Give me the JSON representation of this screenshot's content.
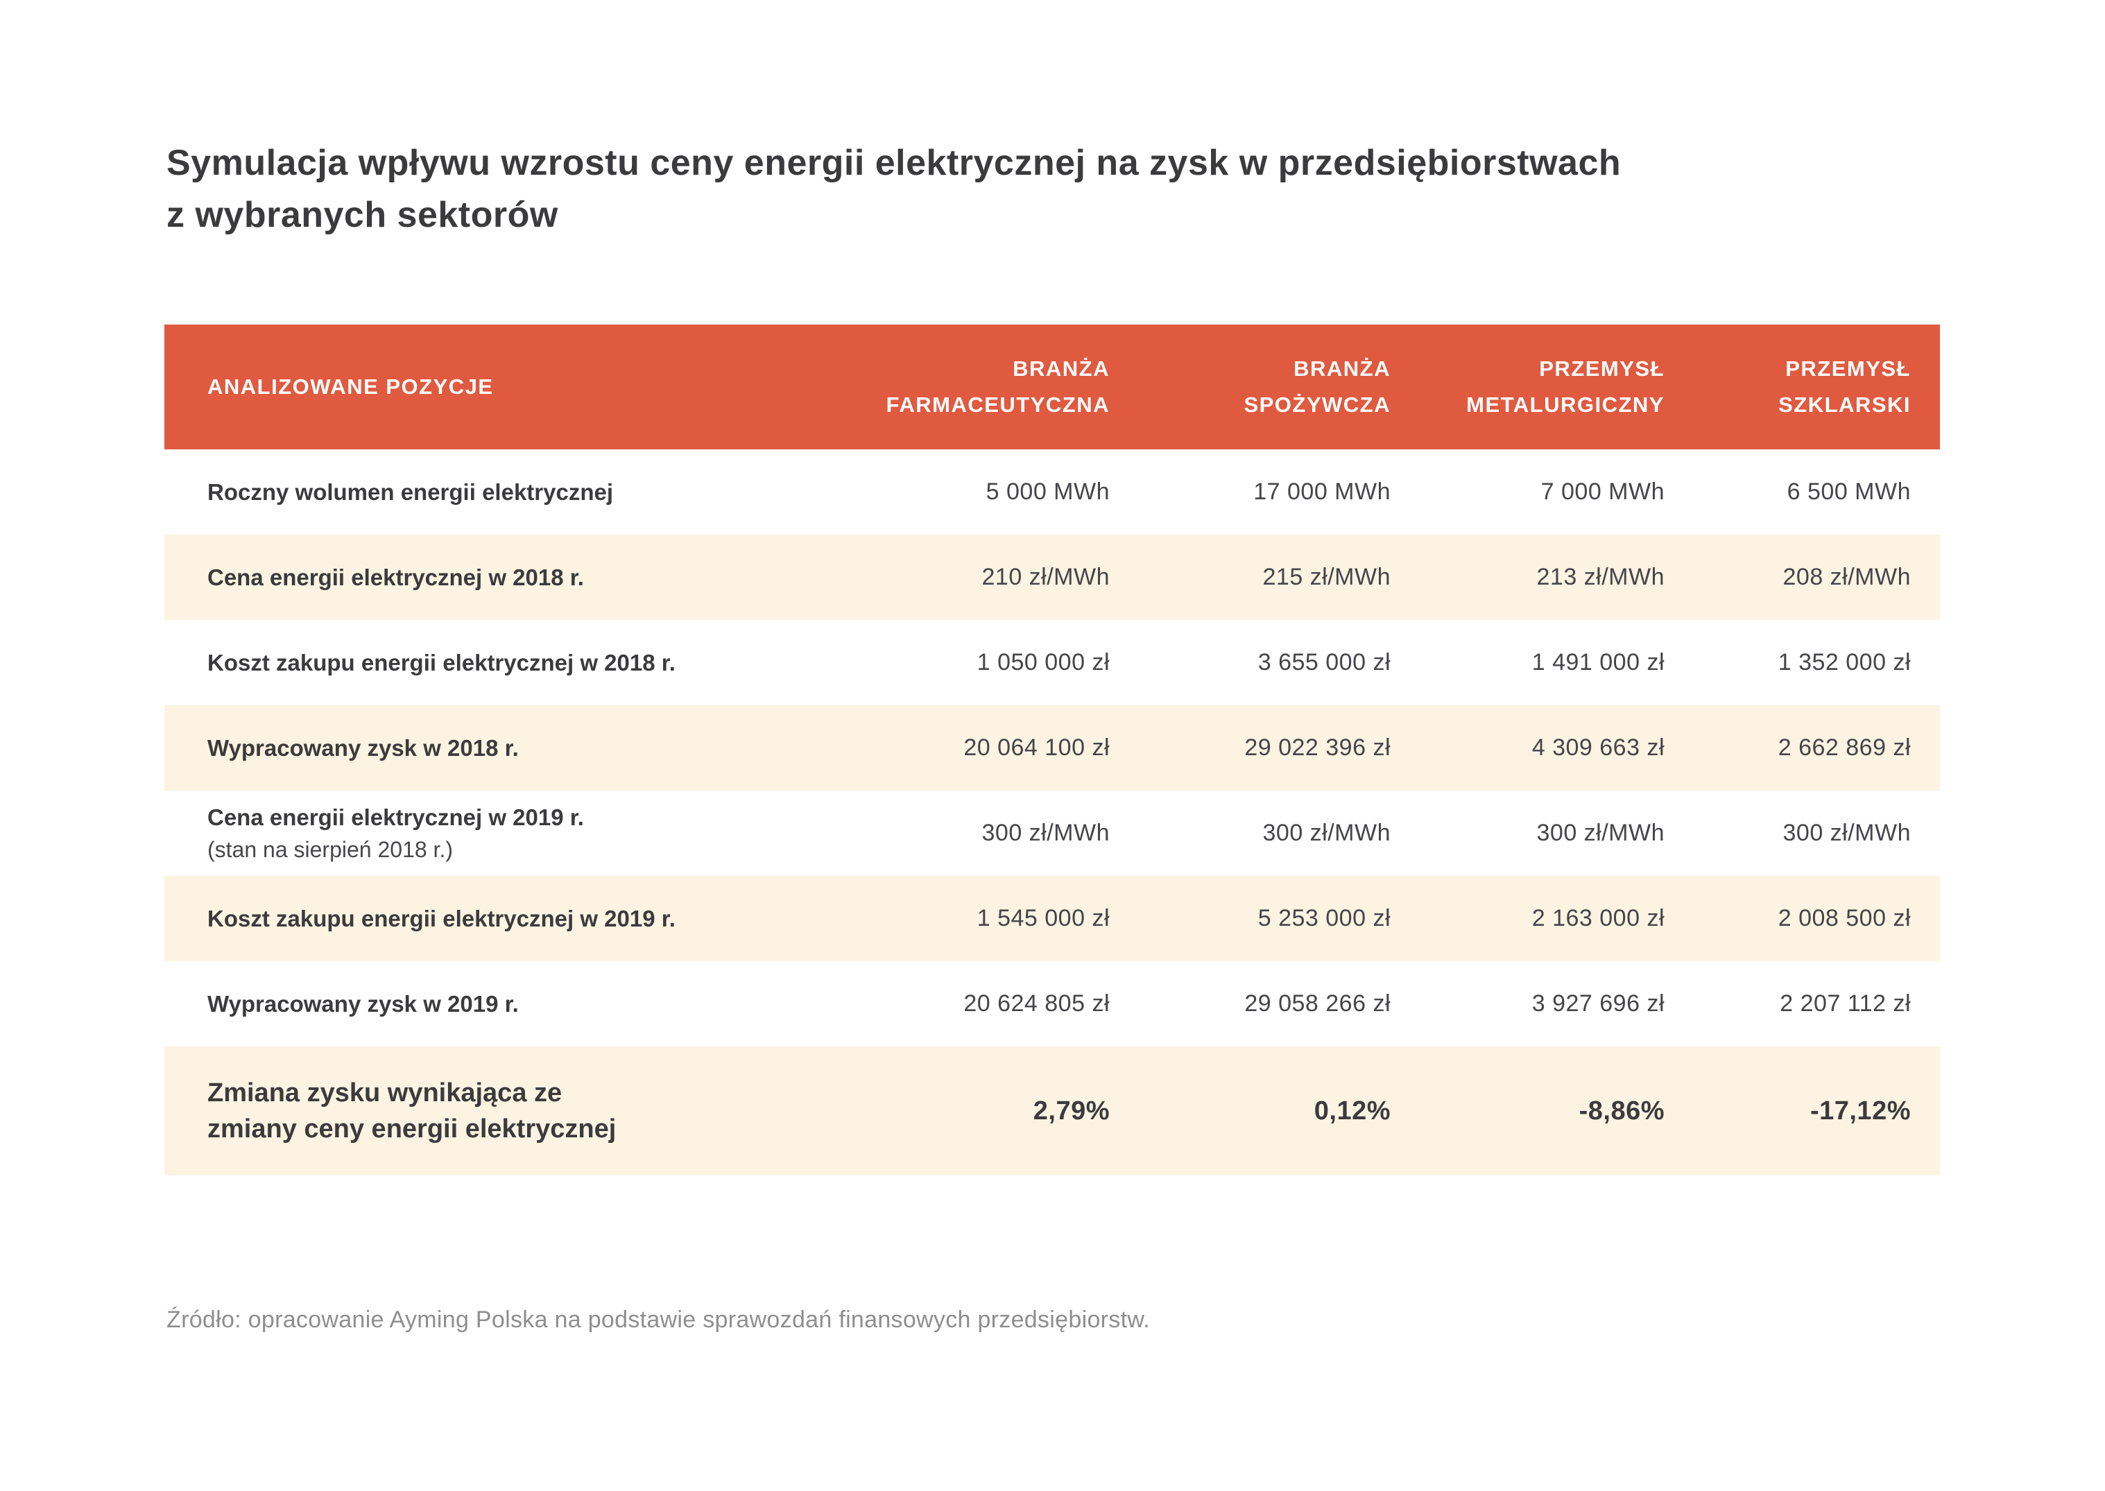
{
  "title": "Symulacja wpływu wzrostu ceny energii elektrycznej na zysk w przedsiębiorstwach\nz wybranych sektorów",
  "table": {
    "header": {
      "label": "ANALIZOWANE POZYCJE",
      "columns": [
        "BRANŻA\nFARMACEUTYCZNA",
        "BRANŻA\nSPOŻYWCZA",
        "PRZEMYSŁ\nMETALURGICZNY",
        "PRZEMYSŁ\nSZKLARSKI"
      ]
    },
    "rows": [
      {
        "label": "Roczny wolumen energii elektrycznej",
        "values": [
          "5 000 MWh",
          "17 000 MWh",
          "7 000 MWh",
          "6 500 MWh"
        ]
      },
      {
        "label": "Cena energii elektrycznej w 2018 r.",
        "values": [
          "210 zł/MWh",
          "215 zł/MWh",
          "213 zł/MWh",
          "208 zł/MWh"
        ]
      },
      {
        "label": "Koszt zakupu energii elektrycznej w 2018 r.",
        "values": [
          "1 050 000 zł",
          "3 655 000 zł",
          "1 491 000 zł",
          "1 352 000 zł"
        ]
      },
      {
        "label": "Wypracowany zysk w 2018 r.",
        "values": [
          "20 064 100 zł",
          "29 022 396 zł",
          "4 309 663 zł",
          "2 662 869 zł"
        ]
      },
      {
        "label": "Cena energii elektrycznej w 2019 r.",
        "sublabel": "(stan na sierpień 2018 r.)",
        "values": [
          "300 zł/MWh",
          "300 zł/MWh",
          "300 zł/MWh",
          "300 zł/MWh"
        ]
      },
      {
        "label": "Koszt zakupu energii elektrycznej w 2019 r.",
        "values": [
          "1 545 000 zł",
          "5 253 000 zł",
          "2 163 000 zł",
          "2 008 500 zł"
        ]
      },
      {
        "label": "Wypracowany zysk w 2019 r.",
        "values": [
          "20 624 805 zł",
          "29 058 266 zł",
          "3 927 696 zł",
          "2 207 112 zł"
        ]
      },
      {
        "label": "Zmiana zysku wynikająca ze\nzmiany ceny energii elektrycznej",
        "values": [
          "2,79%",
          "0,12%",
          "-8,86%",
          "-17,12%"
        ]
      }
    ]
  },
  "source": "Źródło: opracowanie Ayming Polska na podstawie sprawozdań finansowych przedsiębiorstw.",
  "colors": {
    "header_bg": "#E05A40",
    "row_alt_bg": "#FCF3E2",
    "text_dark": "#3B3B3D",
    "text_value": "#45454A",
    "source_gray": "#8E8E8E"
  }
}
